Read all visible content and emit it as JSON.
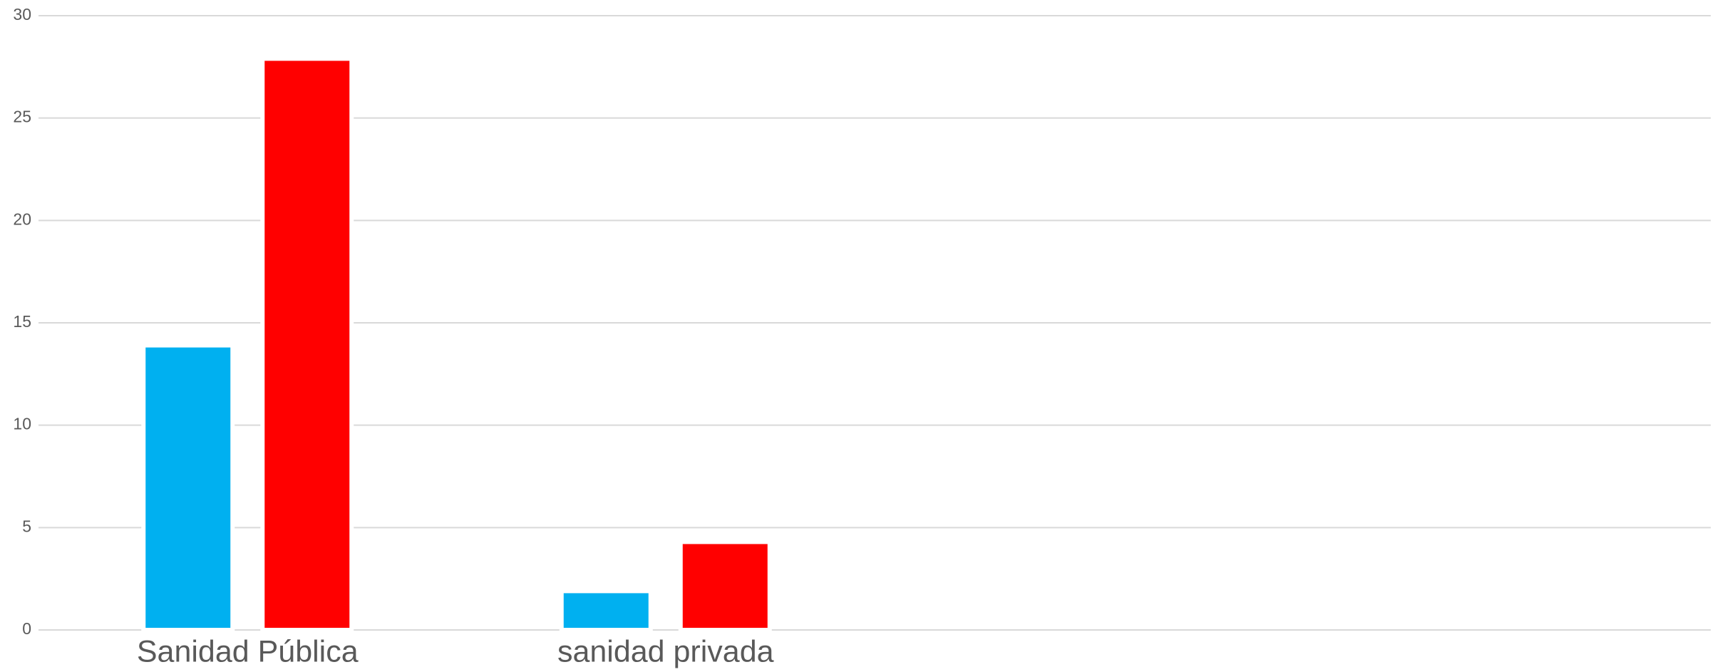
{
  "chart_data": {
    "type": "bar",
    "categories": [
      "Sanidad Pública",
      "sanidad privada",
      null,
      null
    ],
    "series": [
      {
        "color": "#00b0f0",
        "values": [
          13.9,
          1.9,
          null,
          null
        ]
      },
      {
        "color": "#ff0000",
        "values": [
          27.9,
          4.3,
          null,
          null
        ]
      }
    ],
    "ylim": [
      0,
      30
    ],
    "yticks": [
      0,
      5,
      10,
      15,
      20,
      25,
      30
    ],
    "grid": true
  }
}
